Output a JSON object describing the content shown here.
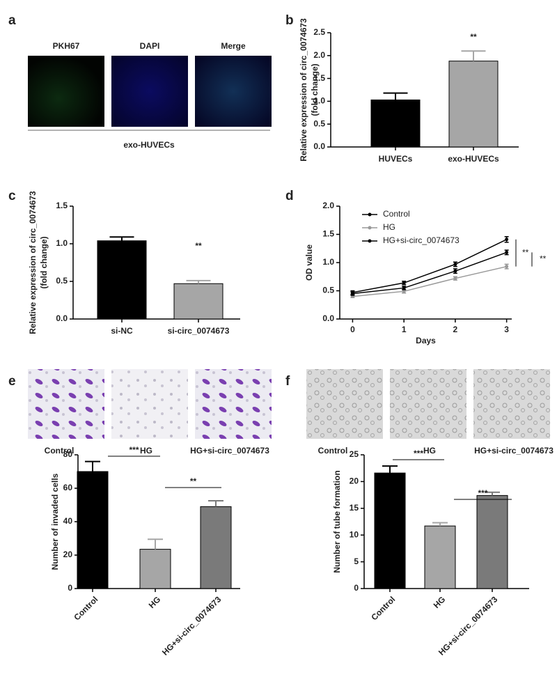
{
  "panel_labels": [
    "a",
    "b",
    "c",
    "d",
    "e",
    "f"
  ],
  "image_panels": [
    {
      "labels": [
        "PKH67",
        "DAPI",
        "Merge"
      ],
      "caption": "exo-HUVECs"
    },
    {
      "labels": [
        "Control",
        "HG",
        "HG+si-circ_0074673"
      ]
    },
    {
      "labels": [
        "Control",
        "HG",
        "HG+si-circ_0074673"
      ]
    }
  ],
  "chart_data": [
    {
      "type": "bar",
      "categories": [
        "HUVECs",
        "exo-HUVECs"
      ],
      "values": [
        1.03,
        1.88
      ],
      "errors": [
        0.15,
        0.22
      ],
      "colors": [
        "#000000",
        "#a6a6a6"
      ],
      "ylabel": [
        "Relative expression of circ_0074673",
        "(fold change)"
      ],
      "ylim": [
        0,
        2.5
      ],
      "yticks": [
        {
          "value": 0,
          "label": "0.0"
        },
        {
          "value": 0.5,
          "label": "0.5"
        },
        {
          "value": 1,
          "label": "1.0"
        },
        {
          "value": 1.5,
          "label": "1.5"
        },
        {
          "value": 2,
          "label": "2.0"
        },
        {
          "value": 2.5,
          "label": "2.5"
        }
      ],
      "annotations": [
        "**"
      ]
    },
    {
      "type": "bar",
      "categories": [
        "si-NC",
        "si-circ_0074673"
      ],
      "values": [
        1.04,
        0.47
      ],
      "errors": [
        0.05,
        0.04
      ],
      "colors": [
        "#000000",
        "#a6a6a6"
      ],
      "ylabel": [
        "Relative expression of circ_0074673",
        "(fold change)"
      ],
      "ylim": [
        0,
        1.5
      ],
      "yticks": [
        {
          "value": 0,
          "label": "0.0"
        },
        {
          "value": 0.5,
          "label": "0.5"
        },
        {
          "value": 1,
          "label": "1.0"
        },
        {
          "value": 1.5,
          "label": "1.5"
        }
      ],
      "annotations": [
        "**"
      ]
    },
    {
      "type": "line",
      "x": [
        0,
        1,
        2,
        3
      ],
      "xlabel": "Days",
      "ylabel": "OD value",
      "xlim": [
        -0.25,
        3.1
      ],
      "xticks": [
        0,
        1,
        2,
        3
      ],
      "ylim": [
        0,
        2
      ],
      "yticks": [
        {
          "value": 0,
          "label": "0.0"
        },
        {
          "value": 0.5,
          "label": "0.5"
        },
        {
          "value": 1,
          "label": "1.0"
        },
        {
          "value": 1.5,
          "label": "1.5"
        },
        {
          "value": 2,
          "label": "2.0"
        }
      ],
      "series": [
        {
          "name": "Control",
          "color": "#000000",
          "values": [
            0.47,
            0.64,
            0.97,
            1.41
          ],
          "errors": [
            0.03,
            0.03,
            0.04,
            0.05
          ]
        },
        {
          "name": "HG",
          "color": "#999999",
          "values": [
            0.4,
            0.49,
            0.72,
            0.93
          ],
          "errors": [
            0.02,
            0.03,
            0.03,
            0.04
          ]
        },
        {
          "name": "HG+si-circ_0074673",
          "color": "#000000",
          "values": [
            0.45,
            0.55,
            0.85,
            1.18
          ],
          "errors": [
            0.03,
            0.03,
            0.04,
            0.04
          ]
        }
      ],
      "legend": "upper left",
      "annotations": [
        "**",
        "**"
      ]
    },
    {
      "type": "bar",
      "categories": [
        "Control",
        "HG",
        "HG+si-circ_0074673"
      ],
      "values": [
        70,
        23.5,
        49
      ],
      "errors": [
        6,
        6,
        3.5
      ],
      "colors": [
        "#000000",
        "#a6a6a6",
        "#7a7a7a"
      ],
      "ylabel": "Number of invaded cells",
      "ylim": [
        0,
        80
      ],
      "yticks": [
        0,
        20,
        40,
        60,
        80
      ],
      "annotations": [
        "***",
        "**"
      ]
    },
    {
      "type": "bar",
      "categories": [
        "Control",
        "HG",
        "HG+si-circ_0074673"
      ],
      "values": [
        21.6,
        11.7,
        17.4
      ],
      "errors": [
        1.3,
        0.6,
        0.6
      ],
      "colors": [
        "#000000",
        "#a6a6a6",
        "#7a7a7a"
      ],
      "ylabel": "Number of tube formation",
      "ylim": [
        0,
        25
      ],
      "yticks": [
        0,
        5,
        10,
        15,
        20,
        25
      ],
      "annotations": [
        "***",
        "***"
      ]
    }
  ]
}
